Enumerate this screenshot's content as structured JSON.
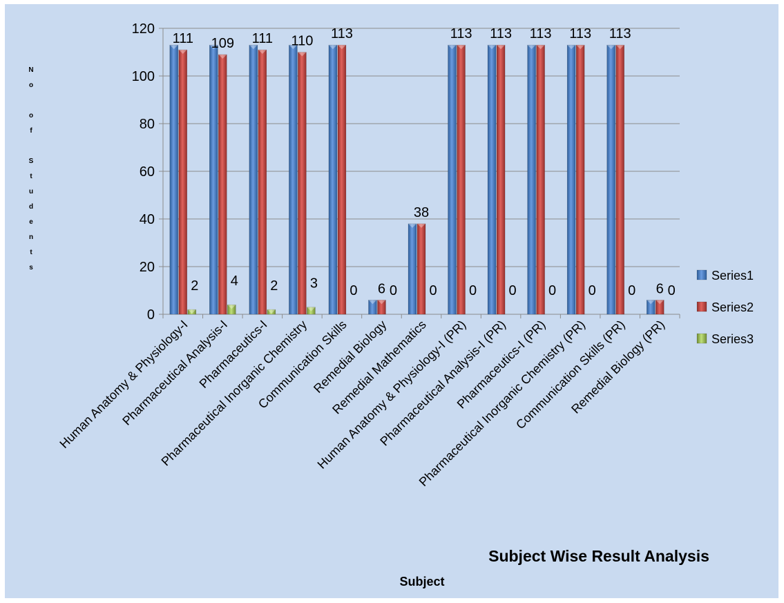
{
  "chart_data": {
    "type": "bar",
    "title": "Subject Wise Result Analysis",
    "xlabel": "Subject",
    "ylabel": "No of Students",
    "ylim": [
      0,
      120
    ],
    "yticks": [
      "0",
      "20",
      "40",
      "60",
      "80",
      "100",
      "120"
    ],
    "grid": true,
    "legend_position": "right",
    "categories": [
      "Human Anatomy & Physiology-I",
      "Pharmaceutical Analysis-I",
      "Pharmaceutics-I",
      "Pharmaceutical Inorganic Chemistry",
      "Communication Skills",
      "Remedial Biology",
      "Remedial Mathematics",
      "Human Anatomy & Physiology-I (PR)",
      "Pharmaceutical Analysis-I (PR)",
      "Pharmaceutics-I (PR)",
      "Pharmaceutical Inorganic Chemistry (PR)",
      "Communication Skills (PR)",
      "Remedial Biology (PR)"
    ],
    "series": [
      {
        "name": "Series1",
        "color": "#4f81bd",
        "values": [
          113,
          113,
          113,
          113,
          113,
          6,
          38,
          113,
          113,
          113,
          113,
          113,
          6
        ]
      },
      {
        "name": "Series2",
        "color": "#c0504d",
        "values": [
          111,
          109,
          111,
          110,
          113,
          6,
          38,
          113,
          113,
          113,
          113,
          113,
          6
        ]
      },
      {
        "name": "Series3",
        "color": "#9bbb59",
        "values": [
          2,
          4,
          2,
          3,
          0,
          0,
          0,
          0,
          0,
          0,
          0,
          0,
          0
        ]
      }
    ],
    "data_labels": [
      "111",
      "109",
      "111",
      "110",
      "113",
      "6",
      "38",
      "113",
      "113",
      "113",
      "113",
      "113",
      "6",
      "2",
      "4",
      "2",
      "3",
      "0",
      "0",
      "0",
      "0",
      "0",
      "0",
      "0",
      "0",
      "0"
    ]
  }
}
